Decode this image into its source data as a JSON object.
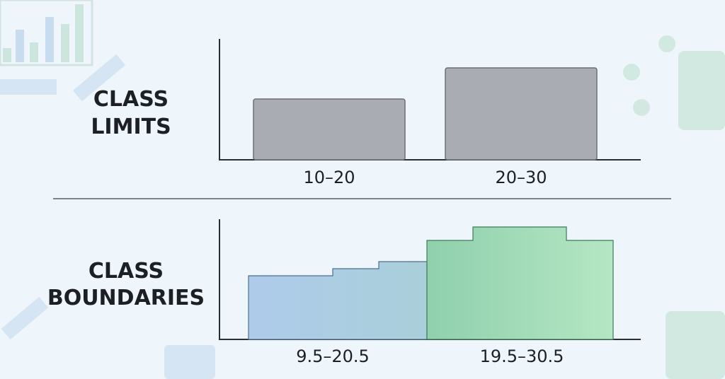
{
  "sections": [
    {
      "title_lines": [
        "CLASS",
        "LIMITS"
      ],
      "labels": [
        "10–20",
        "20–30"
      ]
    },
    {
      "title_lines": [
        "CLASS",
        "BOUNDARIES"
      ],
      "labels": [
        "9.5–20.5",
        "19.5–30.5"
      ]
    }
  ]
}
